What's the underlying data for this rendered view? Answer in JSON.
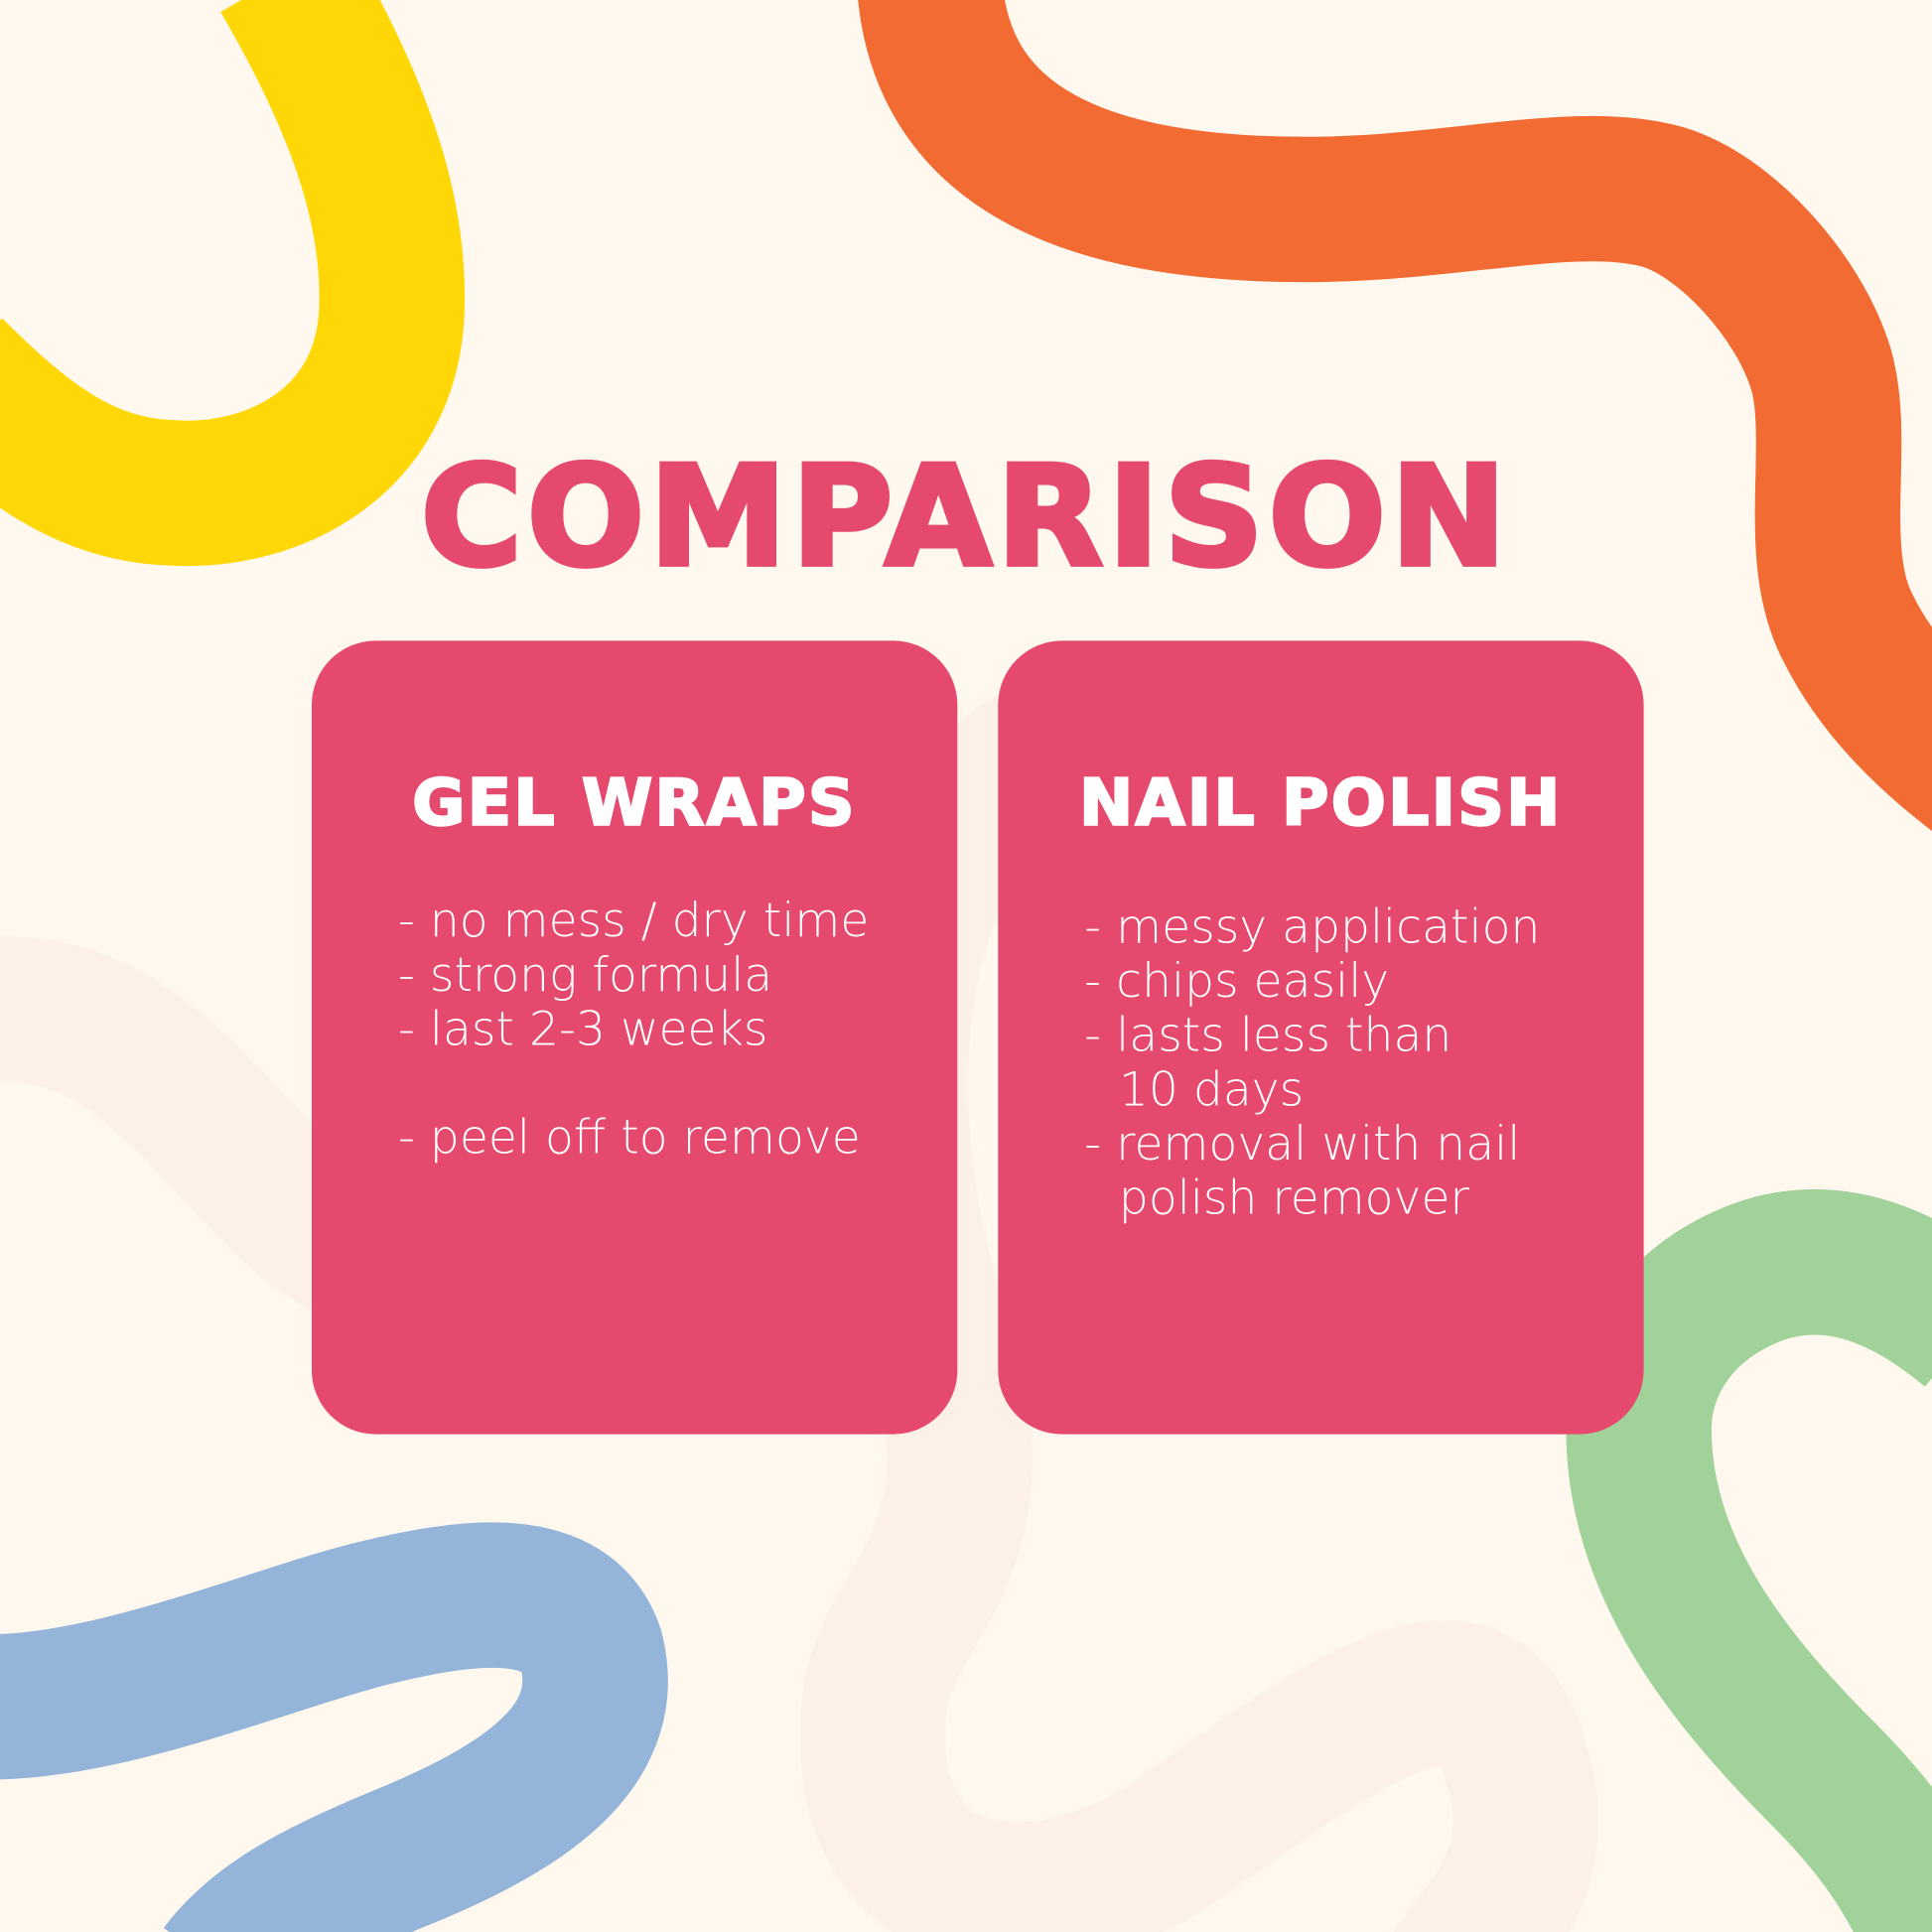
{
  "title": "COMPARISON",
  "colors": {
    "background": "#FEF8EE",
    "accent": "#E6496E",
    "yellow": "#FFD706",
    "orange": "#F16B33",
    "blue": "#94B5D9",
    "green": "#A1D29A",
    "faint": "#FDF1E7"
  },
  "cards": [
    {
      "heading": "GEL WRAPS",
      "items": [
        "no mess / dry time",
        "strong formula",
        "last 2-3 weeks",
        "peel off to remove"
      ]
    },
    {
      "heading": "NAIL POLISH",
      "items": [
        "messy application",
        "chips easily",
        "lasts less than 10 days",
        "removal with nail polish remover"
      ]
    }
  ]
}
